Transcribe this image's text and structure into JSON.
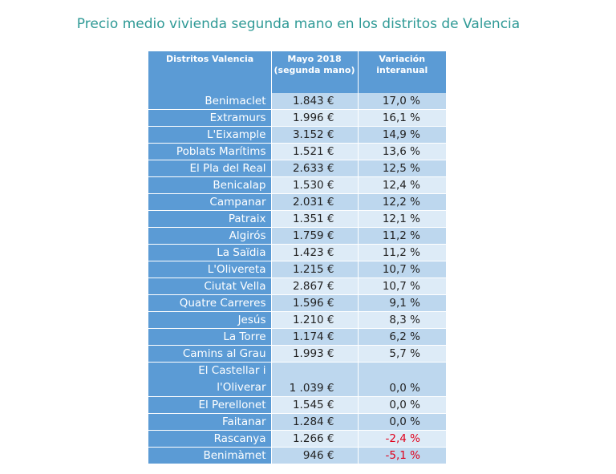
{
  "title": "Precio medio vivienda segunda mano en los distritos de Valencia",
  "table": {
    "headers": [
      "Distritos Valencia",
      "Mayo 2018 (segunda mano)",
      "Variación interanual"
    ],
    "rows": [
      {
        "district": "Benimaclet",
        "price": "1.843 €",
        "variation": "17,0 %"
      },
      {
        "district": "Extramurs",
        "price": "1.996 €",
        "variation": "16,1 %"
      },
      {
        "district": "L'Eixample",
        "price": "3.152 €",
        "variation": "14,9 %"
      },
      {
        "district": "Poblats Marítims",
        "price": "1.521 €",
        "variation": "13,6 %"
      },
      {
        "district": "El Pla del Real",
        "price": "2.633 €",
        "variation": "12,5 %"
      },
      {
        "district": "Benicalap",
        "price": "1.530 €",
        "variation": "12,4 %"
      },
      {
        "district": "Campanar",
        "price": "2.031 €",
        "variation": "12,2 %"
      },
      {
        "district": "Patraix",
        "price": "1.351 €",
        "variation": "12,1 %"
      },
      {
        "district": "Algirós",
        "price": "1.759 €",
        "variation": "11,2 %"
      },
      {
        "district": "La Saïdia",
        "price": "1.423 €",
        "variation": "11,2 %"
      },
      {
        "district": "L'Olivereta",
        "price": "1.215 €",
        "variation": "10,7 %"
      },
      {
        "district": "Ciutat Vella",
        "price": "2.867 €",
        "variation": "10,7 %"
      },
      {
        "district": "Quatre Carreres",
        "price": "1.596 €",
        "variation": "9,1 %"
      },
      {
        "district": "Jesús",
        "price": "1.210 €",
        "variation": "8,3 %"
      },
      {
        "district": "La Torre",
        "price": "1.174 €",
        "variation": "6,2 %"
      },
      {
        "district": "Camins al Grau",
        "price": "1.993 €",
        "variation": "5,7 %"
      },
      {
        "district": "El Castellar i l'Oliverar",
        "price": "1 .039 €",
        "variation": "0,0 %"
      },
      {
        "district": "El Perellonet",
        "price": "1.545 €",
        "variation": "0,0 %"
      },
      {
        "district": "Faitanar",
        "price": "1.284 €",
        "variation": "0,0 %"
      },
      {
        "district": "Rascanya",
        "price": "1.266 €",
        "variation": "-2,4 %"
      },
      {
        "district": "Benimàmet",
        "price": "946 €",
        "variation": "-5,1 %"
      }
    ]
  },
  "colors": {
    "title": "#2f9a96",
    "header_bg": "#5b9bd5",
    "row_odd": "#bdd7ee",
    "row_even": "#ddebf7",
    "negative": "#e0001b"
  }
}
